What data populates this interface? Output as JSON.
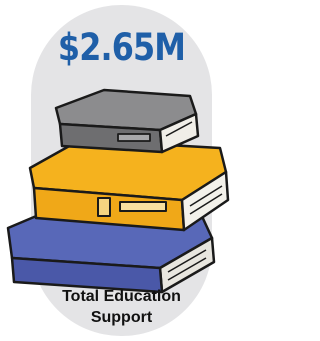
{
  "stat": {
    "value": "$2.65M",
    "label": "Total Education Support"
  }
}
